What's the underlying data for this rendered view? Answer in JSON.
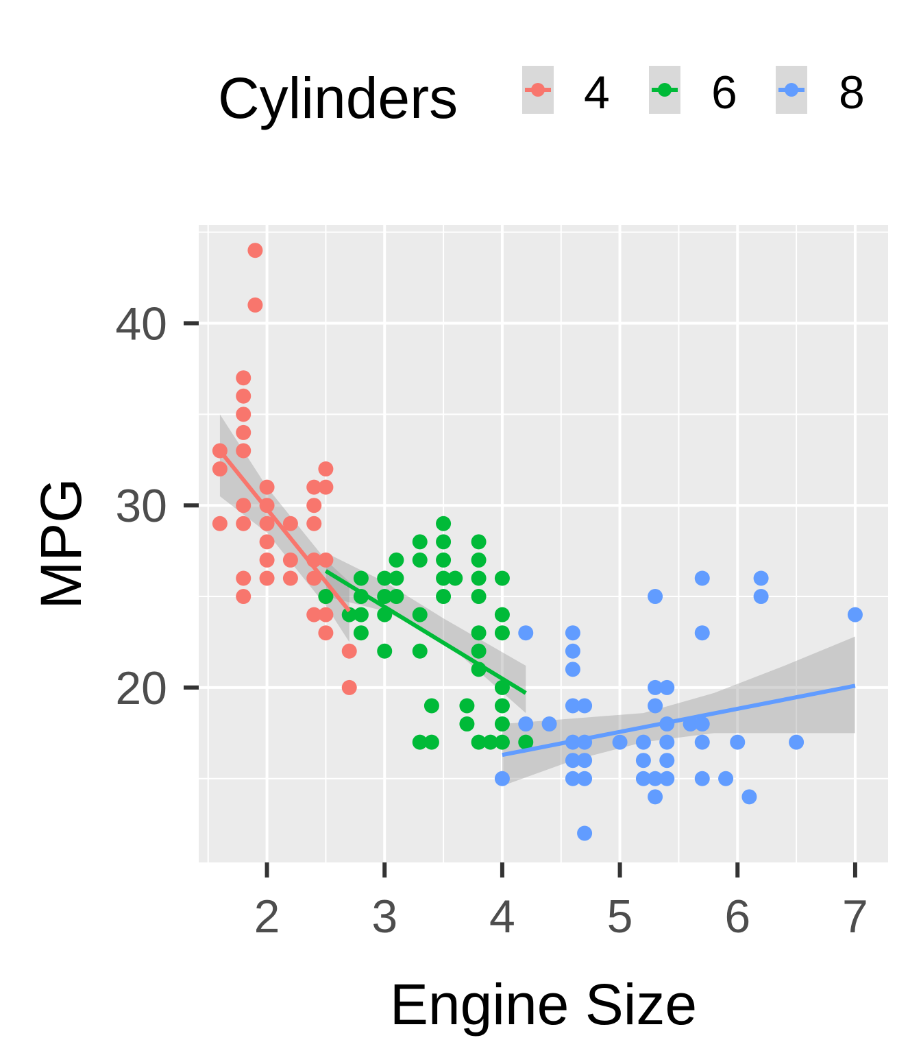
{
  "chart_data": {
    "type": "scatter",
    "xlabel": "Engine Size",
    "ylabel": "MPG",
    "xlim": [
      1.42,
      7.28
    ],
    "ylim": [
      10.4,
      45.4
    ],
    "x_ticks": [
      2,
      3,
      4,
      5,
      6,
      7
    ],
    "y_ticks": [
      20,
      30,
      40
    ],
    "grid": true,
    "legend": {
      "title": "Cylinders",
      "position": "top",
      "entries": [
        "4",
        "6",
        "8"
      ]
    },
    "colors": {
      "4": "#f8766d",
      "6": "#00ba38",
      "8": "#619cff",
      "panel": "#ebebeb",
      "ribbon": "#999999"
    },
    "series": [
      {
        "name": "4",
        "points": [
          [
            1.6,
            33
          ],
          [
            1.6,
            32
          ],
          [
            1.6,
            29
          ],
          [
            1.8,
            37
          ],
          [
            1.8,
            36
          ],
          [
            1.8,
            35
          ],
          [
            1.8,
            34
          ],
          [
            1.8,
            33
          ],
          [
            1.8,
            30
          ],
          [
            1.8,
            29
          ],
          [
            1.8,
            26
          ],
          [
            1.8,
            25
          ],
          [
            1.9,
            44
          ],
          [
            1.9,
            41
          ],
          [
            2.0,
            31
          ],
          [
            2.0,
            30
          ],
          [
            2.0,
            29
          ],
          [
            2.0,
            28
          ],
          [
            2.0,
            27
          ],
          [
            2.0,
            26
          ],
          [
            2.2,
            29
          ],
          [
            2.2,
            27
          ],
          [
            2.2,
            26
          ],
          [
            2.4,
            31
          ],
          [
            2.4,
            30
          ],
          [
            2.4,
            29
          ],
          [
            2.4,
            27
          ],
          [
            2.4,
            26
          ],
          [
            2.4,
            24
          ],
          [
            2.5,
            32
          ],
          [
            2.5,
            31
          ],
          [
            2.5,
            27
          ],
          [
            2.5,
            25
          ],
          [
            2.5,
            24
          ],
          [
            2.5,
            23
          ],
          [
            2.7,
            22
          ],
          [
            2.7,
            20
          ]
        ],
        "fit": {
          "x": [
            1.6,
            2.7
          ],
          "y": [
            33.0,
            24.2
          ]
        },
        "ribbon": {
          "x": [
            1.6,
            2.0,
            2.5,
            2.7
          ],
          "lower": [
            30.5,
            28.5,
            24.5,
            22.5
          ],
          "upper": [
            35.0,
            31.0,
            27.0,
            25.8
          ]
        }
      },
      {
        "name": "6",
        "points": [
          [
            2.5,
            25
          ],
          [
            2.7,
            24
          ],
          [
            2.8,
            26
          ],
          [
            2.8,
            25
          ],
          [
            2.8,
            24
          ],
          [
            2.8,
            23
          ],
          [
            3.0,
            26
          ],
          [
            3.0,
            25
          ],
          [
            3.0,
            24
          ],
          [
            3.0,
            22
          ],
          [
            3.1,
            27
          ],
          [
            3.1,
            26
          ],
          [
            3.1,
            25
          ],
          [
            3.3,
            28
          ],
          [
            3.3,
            27
          ],
          [
            3.3,
            24
          ],
          [
            3.3,
            22
          ],
          [
            3.3,
            17
          ],
          [
            3.4,
            19
          ],
          [
            3.4,
            17
          ],
          [
            3.5,
            29
          ],
          [
            3.5,
            28
          ],
          [
            3.5,
            27
          ],
          [
            3.5,
            26
          ],
          [
            3.5,
            25
          ],
          [
            3.6,
            26
          ],
          [
            3.7,
            19
          ],
          [
            3.7,
            18
          ],
          [
            3.8,
            28
          ],
          [
            3.8,
            27
          ],
          [
            3.8,
            26
          ],
          [
            3.8,
            25
          ],
          [
            3.8,
            23
          ],
          [
            3.8,
            22
          ],
          [
            3.8,
            21
          ],
          [
            3.8,
            17
          ],
          [
            3.9,
            17
          ],
          [
            4.0,
            26
          ],
          [
            4.0,
            24
          ],
          [
            4.0,
            23
          ],
          [
            4.0,
            20
          ],
          [
            4.0,
            19
          ],
          [
            4.0,
            18
          ],
          [
            4.0,
            17
          ],
          [
            4.2,
            17
          ]
        ],
        "fit": {
          "x": [
            2.5,
            4.2
          ],
          "y": [
            26.4,
            19.7
          ]
        },
        "ribbon": {
          "x": [
            2.5,
            3.0,
            3.5,
            4.2
          ],
          "lower": [
            25.0,
            24.2,
            22.6,
            18.6
          ],
          "upper": [
            27.4,
            25.8,
            23.8,
            21.2
          ]
        }
      },
      {
        "name": "8",
        "points": [
          [
            4.0,
            15
          ],
          [
            4.2,
            23
          ],
          [
            4.2,
            18
          ],
          [
            4.4,
            18
          ],
          [
            4.6,
            23
          ],
          [
            4.6,
            22
          ],
          [
            4.6,
            21
          ],
          [
            4.6,
            19
          ],
          [
            4.6,
            17
          ],
          [
            4.6,
            16
          ],
          [
            4.6,
            15
          ],
          [
            4.7,
            19
          ],
          [
            4.7,
            17
          ],
          [
            4.7,
            16
          ],
          [
            4.7,
            15
          ],
          [
            4.7,
            12
          ],
          [
            5.0,
            17
          ],
          [
            5.2,
            17
          ],
          [
            5.2,
            16
          ],
          [
            5.2,
            15
          ],
          [
            5.3,
            25
          ],
          [
            5.3,
            20
          ],
          [
            5.3,
            19
          ],
          [
            5.3,
            15
          ],
          [
            5.3,
            14
          ],
          [
            5.4,
            20
          ],
          [
            5.4,
            18
          ],
          [
            5.4,
            17
          ],
          [
            5.4,
            16
          ],
          [
            5.4,
            15
          ],
          [
            5.6,
            18
          ],
          [
            5.7,
            26
          ],
          [
            5.7,
            23
          ],
          [
            5.7,
            18
          ],
          [
            5.7,
            17
          ],
          [
            5.7,
            15
          ],
          [
            5.9,
            15
          ],
          [
            6.0,
            17
          ],
          [
            6.1,
            14
          ],
          [
            6.2,
            26
          ],
          [
            6.2,
            25
          ],
          [
            6.5,
            17
          ],
          [
            7.0,
            24
          ]
        ],
        "fit": {
          "x": [
            4.0,
            7.0
          ],
          "y": [
            16.3,
            20.1
          ]
        },
        "ribbon": {
          "x": [
            4.0,
            4.6,
            5.2,
            5.8,
            6.4,
            7.0
          ],
          "lower": [
            14.6,
            16.0,
            17.0,
            17.5,
            17.5,
            17.5
          ],
          "upper": [
            18.0,
            18.3,
            18.6,
            19.7,
            21.2,
            22.8
          ]
        }
      }
    ]
  }
}
